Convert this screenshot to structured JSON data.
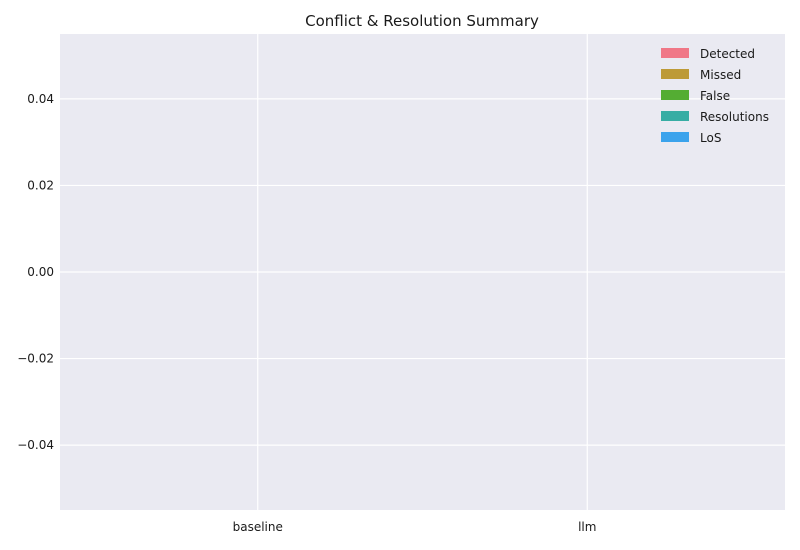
{
  "chart_data": {
    "type": "bar",
    "title": "Conflict & Resolution Summary",
    "xlabel": "",
    "ylabel": "",
    "categories": [
      "baseline",
      "llm"
    ],
    "series": [
      {
        "name": "Detected",
        "values": [
          0,
          0
        ],
        "color": "#f07787"
      },
      {
        "name": "Missed",
        "values": [
          0,
          0
        ],
        "color": "#bd9a37"
      },
      {
        "name": "False",
        "values": [
          0,
          0
        ],
        "color": "#54ad33"
      },
      {
        "name": "Resolutions",
        "values": [
          0,
          0
        ],
        "color": "#37ada4"
      },
      {
        "name": "LoS",
        "values": [
          0,
          0
        ],
        "color": "#3ba3ec"
      }
    ],
    "ylim": [
      -0.055,
      0.055
    ],
    "yticks": [
      -0.04,
      -0.02,
      0.0,
      0.02,
      0.04
    ],
    "ytick_labels": [
      "−0.04",
      "−0.02",
      "0.00",
      "0.02",
      "0.04"
    ],
    "grid": true,
    "legend_position": "top-right",
    "background_color": "#eaeaf2"
  }
}
